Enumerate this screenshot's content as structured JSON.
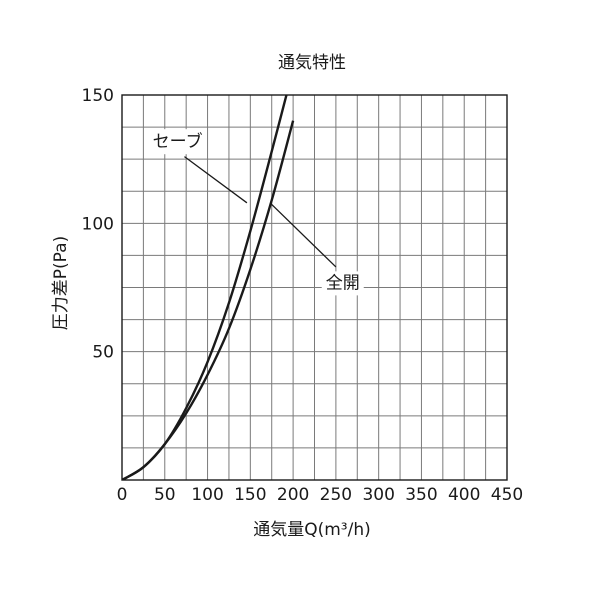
{
  "chart_data": {
    "type": "line",
    "title": "通気特性",
    "xlabel": "通気量Q(m³/h)",
    "ylabel": "圧力差P(Pa)",
    "xlim": [
      0,
      450
    ],
    "ylim": [
      0,
      150
    ],
    "x_ticks": [
      "0",
      "50",
      "100",
      "150",
      "200",
      "250",
      "300",
      "350",
      "400",
      "450"
    ],
    "y_ticks": [
      "50",
      "100",
      "150"
    ],
    "grid": true,
    "grid_minor_step_x": 25,
    "grid_minor_step_y": 12.5,
    "colors": {
      "grid": "#7a7a7a",
      "line": "#1a1a1a",
      "plot_background": "#ffffff"
    },
    "series": [
      {
        "name": "セーブ",
        "x": [
          0,
          25,
          50,
          75,
          100,
          125,
          150,
          175,
          200
        ],
        "y": [
          0,
          5,
          14,
          28,
          46,
          69,
          97,
          128,
          160
        ]
      },
      {
        "name": "全開",
        "x": [
          0,
          25,
          50,
          75,
          100,
          125,
          150,
          175,
          200
        ],
        "y": [
          0,
          5,
          14,
          26,
          41,
          59,
          82,
          109,
          140
        ]
      }
    ],
    "annotations": [
      {
        "text": "セーブ",
        "series": "セーブ",
        "label_at": [
          65,
          132
        ],
        "arrow_from": [
          73,
          126
        ],
        "arrow_to": [
          146,
          108
        ]
      },
      {
        "text": "全開",
        "series": "全開",
        "label_at": [
          258,
          77
        ],
        "arrow_from": [
          250,
          83
        ],
        "arrow_to": [
          173,
          108
        ]
      }
    ]
  }
}
